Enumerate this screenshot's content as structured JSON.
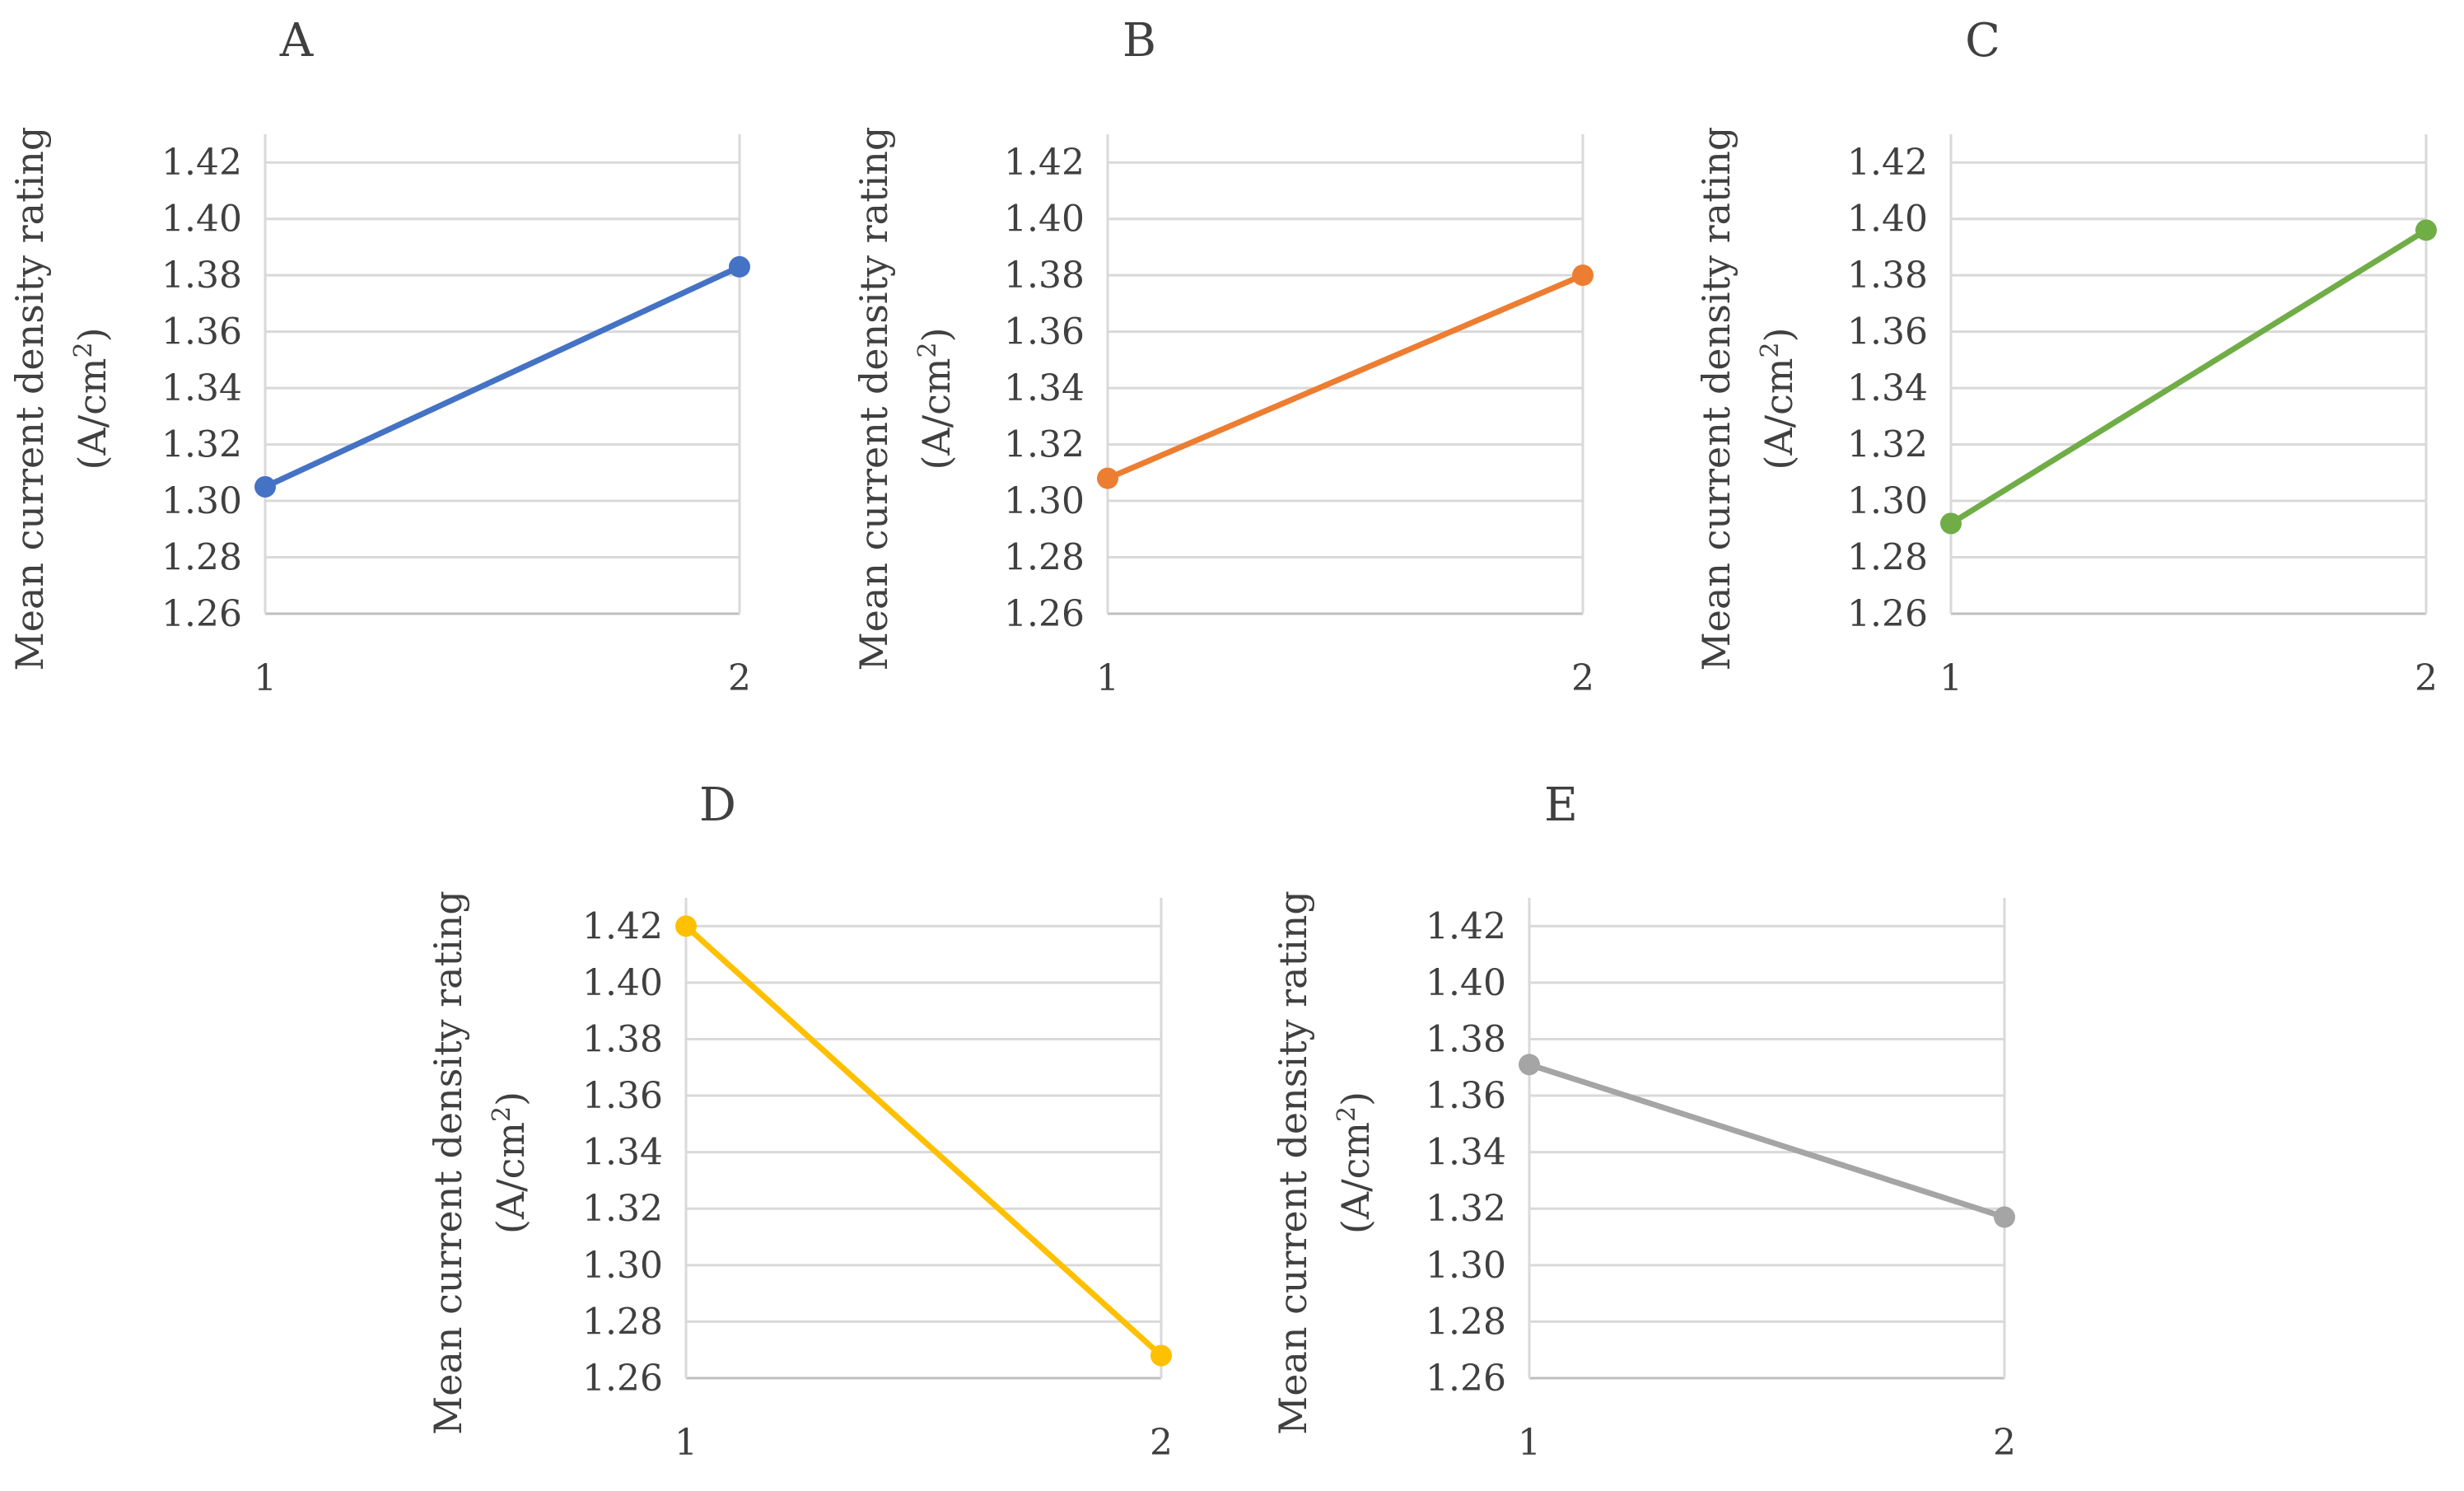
{
  "chart_data": [
    {
      "type": "line",
      "title": "A",
      "ylabel": "Mean current density rating",
      "ylabel_unit": "(A/cm2)",
      "categories": [
        "1",
        "2"
      ],
      "values": [
        1.305,
        1.383
      ],
      "ylim": [
        1.26,
        1.43
      ],
      "yticks": [
        "1.42",
        "1.40",
        "1.38",
        "1.36",
        "1.34",
        "1.32",
        "1.30",
        "1.28",
        "1.26"
      ],
      "color": "#4472c4"
    },
    {
      "type": "line",
      "title": "B",
      "ylabel": "Mean current density rating",
      "ylabel_unit": "(A/cm2)",
      "categories": [
        "1",
        "2"
      ],
      "values": [
        1.308,
        1.38
      ],
      "ylim": [
        1.26,
        1.43
      ],
      "yticks": [
        "1.42",
        "1.40",
        "1.38",
        "1.36",
        "1.34",
        "1.32",
        "1.30",
        "1.28",
        "1.26"
      ],
      "color": "#ed7d31"
    },
    {
      "type": "line",
      "title": "C",
      "ylabel": "Mean current density rating",
      "ylabel_unit": "(A/cm2)",
      "categories": [
        "1",
        "2"
      ],
      "values": [
        1.292,
        1.396
      ],
      "ylim": [
        1.26,
        1.43
      ],
      "yticks": [
        "1.42",
        "1.40",
        "1.38",
        "1.36",
        "1.34",
        "1.32",
        "1.30",
        "1.28",
        "1.26"
      ],
      "color": "#70ad47"
    },
    {
      "type": "line",
      "title": "D",
      "ylabel": "Mean current density rating",
      "ylabel_unit": "(A/cm2)",
      "categories": [
        "1",
        "2"
      ],
      "values": [
        1.42,
        1.268
      ],
      "ylim": [
        1.26,
        1.43
      ],
      "yticks": [
        "1.42",
        "1.40",
        "1.38",
        "1.36",
        "1.34",
        "1.32",
        "1.30",
        "1.28",
        "1.26"
      ],
      "color": "#ffc000"
    },
    {
      "type": "line",
      "title": "E",
      "ylabel": "Mean current density rating",
      "ylabel_unit": "(A/cm2)",
      "categories": [
        "1",
        "2"
      ],
      "values": [
        1.371,
        1.317
      ],
      "ylim": [
        1.26,
        1.43
      ],
      "yticks": [
        "1.42",
        "1.40",
        "1.38",
        "1.36",
        "1.34",
        "1.32",
        "1.30",
        "1.28",
        "1.26"
      ],
      "color": "#a5a5a5"
    }
  ]
}
